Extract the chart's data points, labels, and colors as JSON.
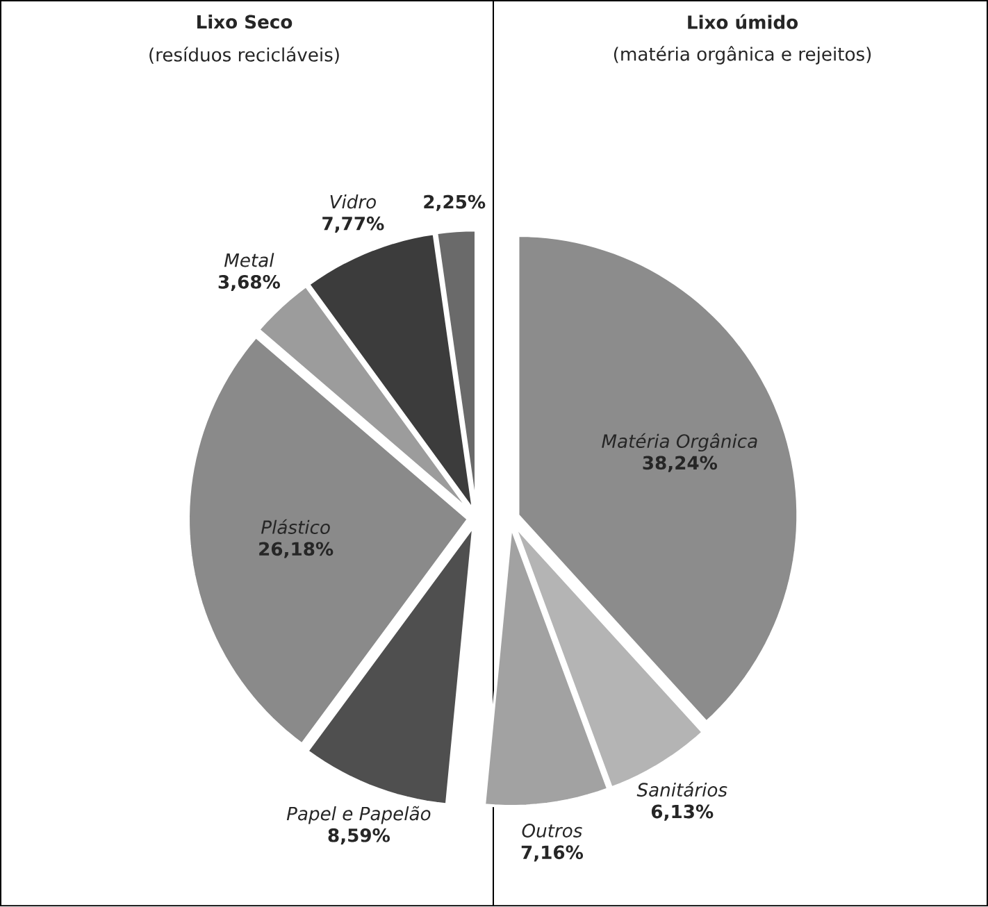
{
  "chart_data": {
    "type": "pie",
    "categories": [
      "Matéria Orgânica",
      "Sanitários",
      "Outros",
      "Papel e Papelão",
      "Plástico",
      "Metal",
      "Vidro",
      null
    ],
    "values": [
      38.24,
      6.13,
      7.16,
      8.59,
      26.18,
      3.68,
      7.77,
      2.25
    ],
    "colors": [
      "#8c8c8c",
      "#b4b4b4",
      "#a2a2a2",
      "#4f4f4f",
      "#8a8a8a",
      "#9c9c9c",
      "#3c3c3c",
      "#6a6a6a"
    ],
    "value_labels": [
      "38,24%",
      "6,13%",
      "7,16%",
      "8,59%",
      "26,18%",
      "3,68%",
      "7,77%",
      "2,25%"
    ],
    "annotations": [
      "Lixo Seco",
      "(resíduos recicláveis)",
      "Lixo úmido",
      "(matéria orgânica e rejeitos)"
    ]
  }
}
